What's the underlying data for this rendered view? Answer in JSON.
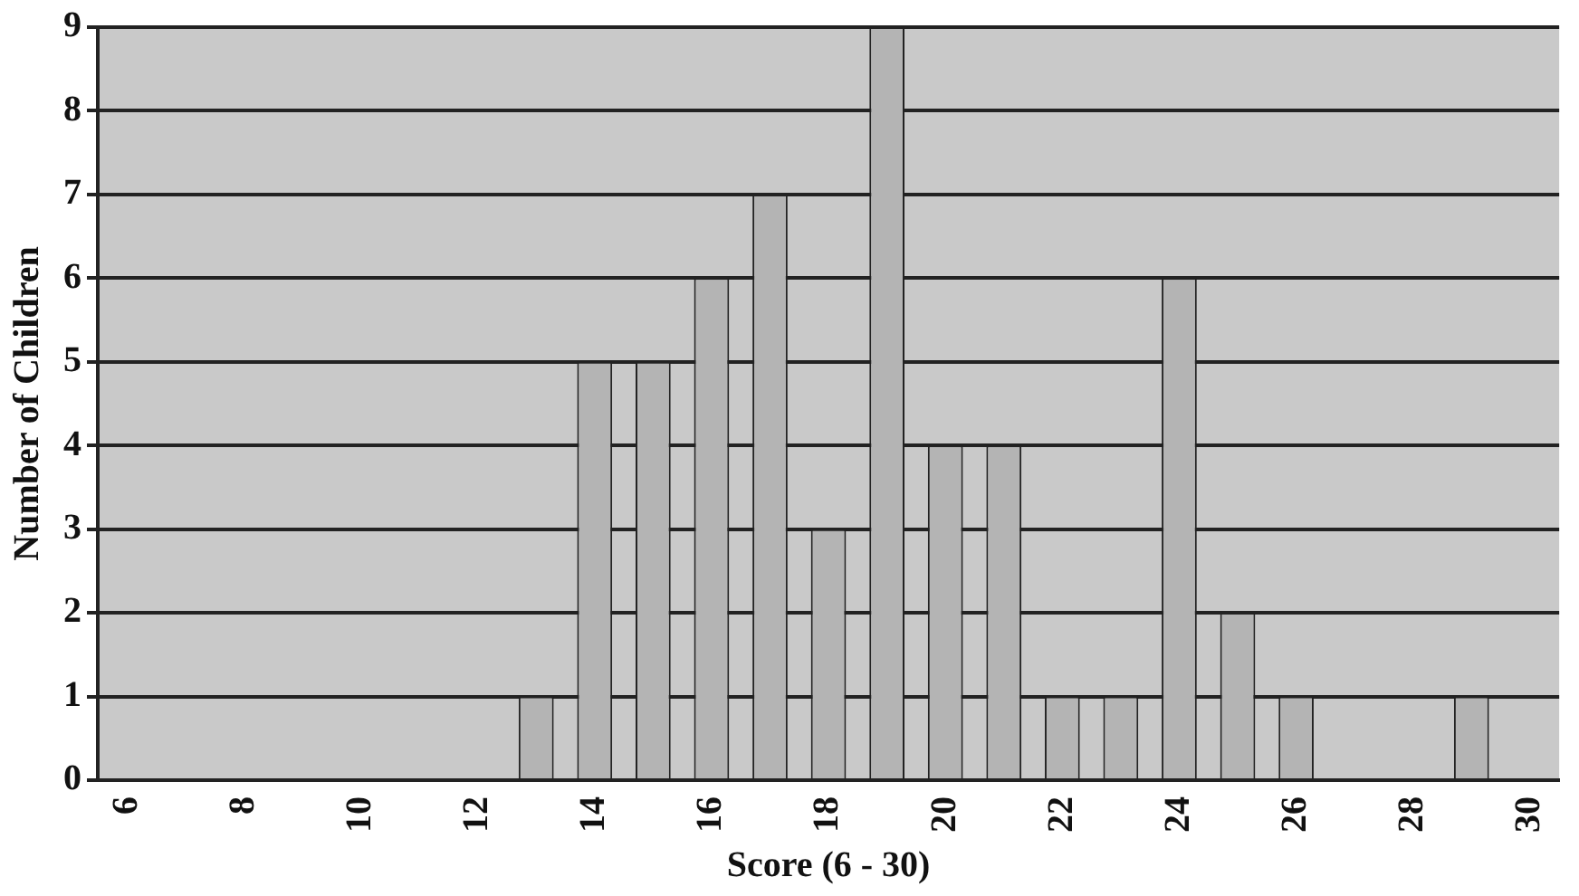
{
  "chart_data": {
    "type": "bar",
    "xlabel": "Score (6 - 30)",
    "ylabel": "Number of Children",
    "categories": [
      "6",
      null,
      "8",
      null,
      "10",
      null,
      "12",
      null,
      "14",
      null,
      "16",
      null,
      "18",
      null,
      "20",
      null,
      "22",
      null,
      "24",
      null,
      "26",
      null,
      "28",
      null,
      "30"
    ],
    "values": [
      0,
      0,
      0,
      0,
      0,
      0,
      0,
      1,
      5,
      5,
      6,
      7,
      3,
      9,
      4,
      4,
      1,
      1,
      6,
      2,
      1,
      0,
      0,
      1,
      0
    ],
    "color": "#b4b4b4",
    "ylim": [
      0,
      9
    ],
    "yticks": [
      0,
      1,
      2,
      3,
      4,
      5,
      6,
      7,
      8,
      9
    ],
    "grid": "y"
  }
}
